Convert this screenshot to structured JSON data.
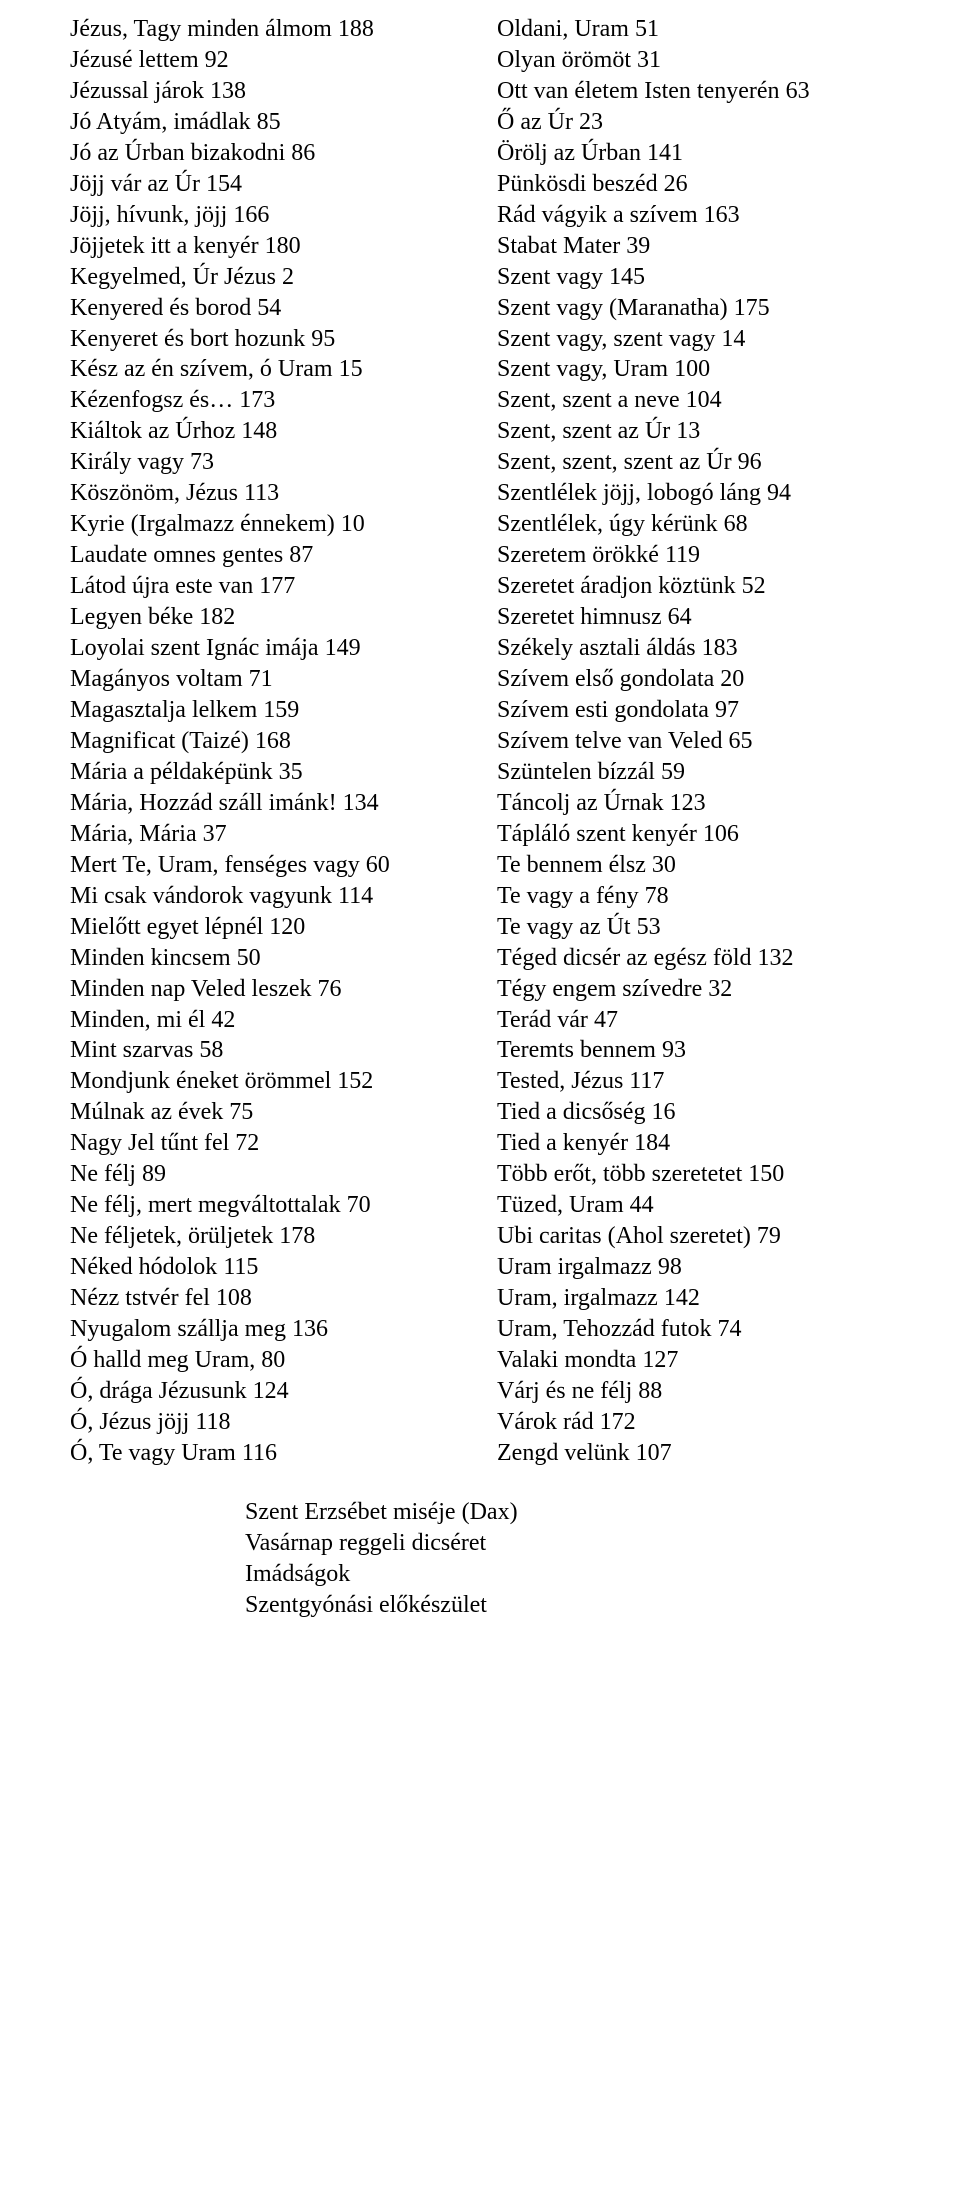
{
  "left": [
    {
      "title": "Jézus, Tagy minden álmom",
      "num": "188"
    },
    {
      "title": "Jézusé lettem",
      "num": "92"
    },
    {
      "title": "Jézussal járok",
      "num": "138"
    },
    {
      "title": "Jó Atyám, imádlak",
      "num": "85"
    },
    {
      "title": "Jó az Úrban bizakodni",
      "num": "86"
    },
    {
      "title": "Jöjj vár az Úr",
      "num": "154"
    },
    {
      "title": "Jöjj, hívunk, jöjj",
      "num": "166"
    },
    {
      "title": "Jöjjetek itt a kenyér",
      "num": "180"
    },
    {
      "title": "Kegyelmed, Úr Jézus",
      "num": "2"
    },
    {
      "title": "Kenyered és borod",
      "num": "54"
    },
    {
      "title": "Kenyeret és bort hozunk",
      "num": "95"
    },
    {
      "title": "Kész az én szívem, ó Uram",
      "num": "15"
    },
    {
      "title": "Kézenfogsz és…",
      "num": "173"
    },
    {
      "title": "Kiáltok az Úrhoz",
      "num": "148"
    },
    {
      "title": "Király vagy",
      "num": "73"
    },
    {
      "title": "Köszönöm, Jézus",
      "num": "113"
    },
    {
      "title": "Kyrie  (Irgalmazz énnekem)",
      "num": "10"
    },
    {
      "title": "Laudate omnes gentes",
      "num": "87"
    },
    {
      "title": "Látod újra este van",
      "num": "177"
    },
    {
      "title": "Legyen béke",
      "num": "182"
    },
    {
      "title": "Loyolai szent Ignác imája",
      "num": "149"
    },
    {
      "title": "Magányos voltam",
      "num": "71"
    },
    {
      "title": "Magasztalja lelkem",
      "num": "159"
    },
    {
      "title": "Magnificat (Taizé)",
      "num": "168"
    },
    {
      "title": "Mária a példaképünk",
      "num": "35"
    },
    {
      "title": "Mária, Hozzád száll imánk!",
      "num": "134"
    },
    {
      "title": "Mária, Mária",
      "num": "37"
    },
    {
      "title": "Mert Te, Uram, fenséges vagy",
      "num": "60"
    },
    {
      "title": "Mi csak vándorok vagyunk",
      "num": "114"
    },
    {
      "title": "Mielőtt egyet lépnél",
      "num": "120"
    },
    {
      "title": "Minden kincsem",
      "num": "50"
    },
    {
      "title": "Minden nap Veled leszek",
      "num": "76"
    },
    {
      "title": "Minden, mi él",
      "num": "42"
    },
    {
      "title": "Mint szarvas",
      "num": "58"
    },
    {
      "title": "Mondjunk éneket örömmel",
      "num": "152"
    },
    {
      "title": "Múlnak az évek",
      "num": "75"
    },
    {
      "title": "Nagy Jel tűnt fel",
      "num": "72"
    },
    {
      "title": "Ne félj",
      "num": "89"
    },
    {
      "title": "Ne félj, mert megváltottalak",
      "num": "70"
    },
    {
      "title": "Ne féljetek, örüljetek",
      "num": "178"
    },
    {
      "title": "Néked hódolok",
      "num": "115"
    },
    {
      "title": "Nézz tstvér fel",
      "num": "108"
    },
    {
      "title": "Nyugalom szállja meg",
      "num": "136"
    },
    {
      "title": "Ó halld meg Uram,",
      "num": "80"
    },
    {
      "title": "Ó, drága Jézusunk",
      "num": "124"
    },
    {
      "title": "Ó, Jézus jöjj",
      "num": "118"
    },
    {
      "title": "Ó, Te vagy Uram",
      "num": "116"
    }
  ],
  "right": [
    {
      "title": "Oldani, Uram",
      "num": "51"
    },
    {
      "title": "Olyan örömöt",
      "num": "31"
    },
    {
      "title": "Ott van életem Isten tenyerén",
      "num": "63"
    },
    {
      "title": "Ő az Úr",
      "num": "23"
    },
    {
      "title": "Örölj az Úrban",
      "num": "141"
    },
    {
      "title": "Pünkösdi beszéd",
      "num": "26"
    },
    {
      "title": "Rád vágyik a szívem",
      "num": "163"
    },
    {
      "title": "Stabat Mater",
      "num": "39"
    },
    {
      "title": "Szent vagy",
      "num": "145"
    },
    {
      "title": "Szent vagy (Maranatha)",
      "num": "175"
    },
    {
      "title": "Szent vagy, szent vagy",
      "num": "14"
    },
    {
      "title": "Szent vagy, Uram",
      "num": "100"
    },
    {
      "title": "Szent, szent a neve",
      "num": "104"
    },
    {
      "title": "Szent, szent az Úr",
      "num": "13"
    },
    {
      "title": "Szent, szent, szent az Úr",
      "num": "96"
    },
    {
      "title": "Szentlélek jöjj, lobogó láng",
      "num": "94"
    },
    {
      "title": "Szentlélek, úgy kérünk",
      "num": "68"
    },
    {
      "title": "Szeretem örökké",
      "num": "119"
    },
    {
      "title": "Szeretet áradjon köztünk",
      "num": "52"
    },
    {
      "title": "Szeretet himnusz",
      "num": "64"
    },
    {
      "title": "Székely asztali áldás",
      "num": "183"
    },
    {
      "title": "Szívem első gondolata",
      "num": "20"
    },
    {
      "title": "Szívem esti gondolata",
      "num": "97"
    },
    {
      "title": "Szívem telve van Veled",
      "num": "65"
    },
    {
      "title": "Szüntelen bízzál",
      "num": "59"
    },
    {
      "title": "Táncolj az Úrnak",
      "num": "123"
    },
    {
      "title": "Tápláló szent kenyér",
      "num": "106"
    },
    {
      "title": "Te bennem élsz",
      "num": "30"
    },
    {
      "title": "Te vagy a fény",
      "num": "78"
    },
    {
      "title": "Te vagy az Út",
      "num": "53"
    },
    {
      "title": "Téged dicsér az egész föld",
      "num": "132"
    },
    {
      "title": "Tégy engem szívedre",
      "num": "32"
    },
    {
      "title": "Terád vár",
      "num": "47"
    },
    {
      "title": "Teremts bennem",
      "num": "93"
    },
    {
      "title": "Tested, Jézus",
      "num": "117"
    },
    {
      "title": "Tied a dicsőség",
      "num": "16"
    },
    {
      "title": "Tied a kenyér",
      "num": "184"
    },
    {
      "title": "Több erőt, több szeretetet",
      "num": "150"
    },
    {
      "title": "Tüzed, Uram",
      "num": "44"
    },
    {
      "title": "Ubi caritas  (Ahol szeretet)",
      "num": "79"
    },
    {
      "title": "Uram irgalmazz",
      "num": "98"
    },
    {
      "title": "Uram, irgalmazz",
      "num": "142"
    },
    {
      "title": "Uram, Tehozzád futok",
      "num": "74"
    },
    {
      "title": "Valaki mondta",
      "num": "127"
    },
    {
      "title": "Várj és ne félj",
      "num": "88"
    },
    {
      "title": "Várok rád",
      "num": "172"
    },
    {
      "title": "Zengd velünk",
      "num": "107"
    }
  ],
  "footer": [
    "Szent Erzsébet miséje (Dax)",
    "Vasárnap reggeli dicséret",
    "Imádságok",
    "Szentgyónási előkészület"
  ]
}
